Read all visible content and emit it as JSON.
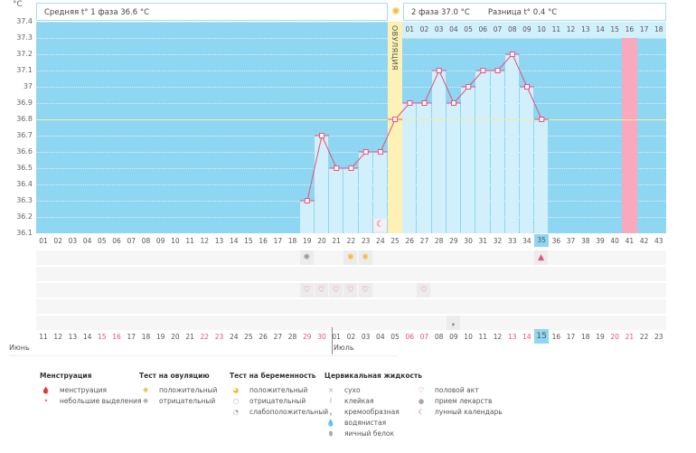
{
  "header": {
    "unit": "°C",
    "phase1": "Средняя t° 1 фаза 36.6 °C",
    "phase2": "2 фаза 37.0 °C",
    "diff": "Разница t° 0.4 °C",
    "ovulation_label": "ОВУЛЯЦИЯ"
  },
  "chart_data": {
    "type": "line",
    "ylim": [
      36.1,
      37.4
    ],
    "yticks": [
      "37.4",
      "37.3",
      "37.2",
      "37.1",
      "37",
      "36.9",
      "36.8",
      "36.7",
      "36.6",
      "36.5",
      "36.4",
      "36.3",
      "36.2",
      "36.1"
    ],
    "coverline": 36.8,
    "cycle_days": [
      "01",
      "02",
      "03",
      "04",
      "05",
      "06",
      "07",
      "08",
      "09",
      "10",
      "11",
      "12",
      "13",
      "14",
      "15",
      "16",
      "17",
      "18",
      "19",
      "20",
      "21",
      "22",
      "23",
      "24",
      "25",
      "26",
      "27",
      "28",
      "29",
      "30",
      "31",
      "32",
      "33",
      "34",
      "35",
      "36",
      "37",
      "38",
      "39",
      "40",
      "41",
      "42",
      "43"
    ],
    "temperatures": {
      "19": 36.3,
      "20": 36.7,
      "21": 36.5,
      "22": 36.5,
      "23": 36.6,
      "24": 36.6,
      "25": 36.8,
      "26": 36.9,
      "27": 36.9,
      "28": 37.1,
      "29": 36.9,
      "30": 37.0,
      "31": 37.1,
      "32": 37.1,
      "33": 37.2,
      "34": 37.0,
      "35": 36.8
    },
    "ovulation_day": 25,
    "expected_period_day": 41,
    "current_day": 35,
    "phase2_days": [
      "01",
      "02",
      "03",
      "04",
      "05",
      "06",
      "07",
      "08",
      "09",
      "10",
      "11",
      "12",
      "13",
      "14",
      "15",
      "16",
      "17",
      "18"
    ],
    "dates": [
      "11",
      "12",
      "13",
      "14",
      "15",
      "16",
      "17",
      "18",
      "19",
      "20",
      "21",
      "22",
      "23",
      "24",
      "25",
      "26",
      "27",
      "28",
      "29",
      "30",
      "01",
      "02",
      "03",
      "04",
      "05",
      "06",
      "07",
      "08",
      "09",
      "10",
      "11",
      "12",
      "13",
      "14",
      "15",
      "16",
      "17",
      "18",
      "19",
      "20",
      "21",
      "22",
      "23"
    ],
    "weekend_indices": [
      4,
      5,
      11,
      12,
      18,
      19,
      25,
      26,
      32,
      33,
      39,
      40
    ],
    "months": [
      "Июнь",
      "Июль"
    ]
  },
  "marks": {
    "moon_day": 24,
    "ovulation_tests": [
      {
        "day": 19,
        "type": "negative"
      },
      {
        "day": 22,
        "type": "positive"
      },
      {
        "day": 23,
        "type": "positive"
      }
    ],
    "menstruation": [
      {
        "day": 35
      }
    ],
    "intercourse_days": [
      19,
      20,
      21,
      22,
      23,
      27
    ],
    "cervical": [
      {
        "day": 29,
        "type": "creamy"
      }
    ]
  },
  "colors": {
    "plot": "#8fd6f2",
    "bar": "#d2effc",
    "line": "#e8507a",
    "ovulation": "#fdf1b5",
    "period": "#f9a9bd",
    "coverline": "#f3ef9a"
  },
  "legend": [
    {
      "title": "Менструация",
      "items": [
        {
          "icon": "drop-large-icon",
          "glyph": "🩸",
          "label": "менструация"
        },
        {
          "icon": "drop-small-icon",
          "glyph": "•",
          "label": "небольшие выделения"
        }
      ]
    },
    {
      "title": "Тест на овуляцию",
      "items": [
        {
          "icon": "sun-positive-icon",
          "glyph": "✺",
          "label": "положительный"
        },
        {
          "icon": "sun-negative-icon",
          "glyph": "✺",
          "label": "отрицательный"
        }
      ]
    },
    {
      "title": "Тест на беременность",
      "items": [
        {
          "icon": "pregnancy-positive-icon",
          "glyph": "◕",
          "label": "положительный"
        },
        {
          "icon": "pregnancy-negative-icon",
          "glyph": "○",
          "label": "отрицательный"
        },
        {
          "icon": "pregnancy-weak-icon",
          "glyph": "◔",
          "label": "слабоположительный"
        }
      ]
    },
    {
      "title": "Цервикальная жидкость",
      "items": [
        {
          "icon": "dry-icon",
          "glyph": "×",
          "label": "сухо"
        },
        {
          "icon": "sticky-icon",
          "glyph": "I",
          "label": "клейкая"
        },
        {
          "icon": "creamy-icon",
          "glyph": "❟",
          "label": "кремообразная"
        },
        {
          "icon": "watery-icon",
          "glyph": "💧",
          "label": "водянистая"
        },
        {
          "icon": "eggwhite-icon",
          "glyph": "⬮",
          "label": "яичный белок"
        }
      ]
    },
    {
      "title": "",
      "items": [
        {
          "icon": "heart-icon",
          "glyph": "♡",
          "label": "половой акт"
        },
        {
          "icon": "pill-icon",
          "glyph": "●",
          "label": "прием лекарств"
        },
        {
          "icon": "moon-icon",
          "glyph": "☾",
          "label": "лунный календарь"
        }
      ]
    }
  ]
}
